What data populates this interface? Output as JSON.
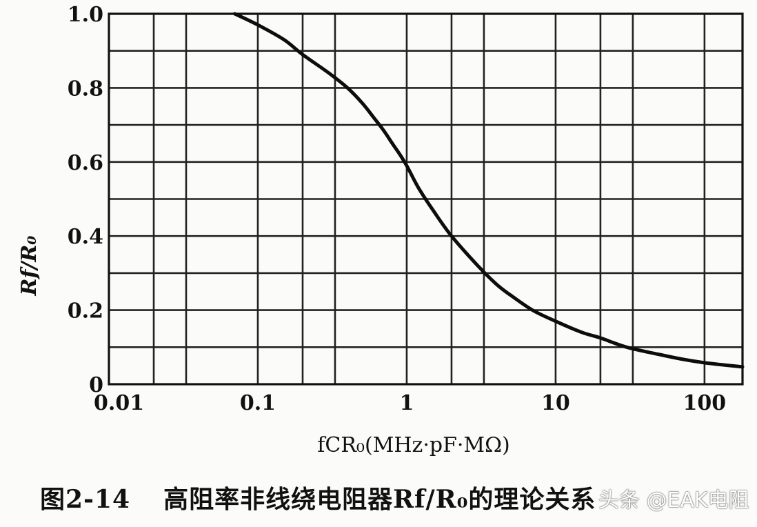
{
  "chart_data": {
    "type": "line",
    "x_scale": "log",
    "xlim": [
      0.01,
      180
    ],
    "ylim": [
      0,
      1.0
    ],
    "grid": true,
    "x_ticks": [
      "0.01",
      "0.1",
      "1",
      "10",
      "100"
    ],
    "x_tick_values": [
      0.01,
      0.1,
      1,
      10,
      100
    ],
    "y_ticks": [
      "1.0",
      "0.8",
      "0.6",
      "0.4",
      "0.2",
      "0"
    ],
    "y_tick_values": [
      1.0,
      0.8,
      0.6,
      0.4,
      0.2,
      0
    ],
    "xlabel": "fCR₀(MHz·pF·MΩ)",
    "ylabel": "Rf/R₀",
    "series": [
      {
        "x": [
          0.07,
          0.1,
          0.15,
          0.2,
          0.3,
          0.4,
          0.5,
          0.6,
          0.7,
          0.8,
          0.9,
          1.0,
          1.2,
          1.5,
          2,
          3,
          4,
          5,
          7,
          10,
          15,
          20,
          30,
          50,
          70,
          100,
          150,
          180
        ],
        "y": [
          1.0,
          0.97,
          0.93,
          0.89,
          0.84,
          0.8,
          0.76,
          0.72,
          0.685,
          0.65,
          0.62,
          0.59,
          0.53,
          0.47,
          0.4,
          0.32,
          0.27,
          0.24,
          0.2,
          0.17,
          0.14,
          0.125,
          0.1,
          0.08,
          0.068,
          0.058,
          0.05,
          0.047
        ]
      }
    ]
  },
  "caption": {
    "figure_number": "图2-14",
    "text": "高阻率非线绕电阻器Rf/R₀的理论关系"
  },
  "watermark": "头条 @EAK电阻"
}
